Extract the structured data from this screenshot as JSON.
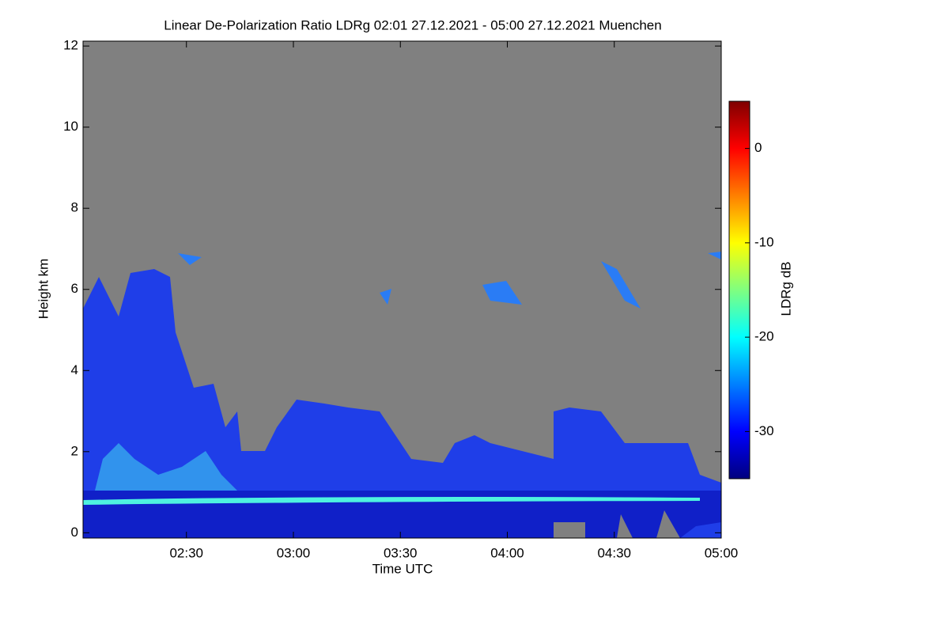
{
  "chart_data": {
    "type": "heatmap",
    "title": "Linear De-Polarization Ratio LDRg   02:01 27.12.2021 - 05:00 27.12.2021 Muenchen",
    "xlabel": "Time UTC",
    "ylabel": "Height km",
    "xlim": [
      "02:01",
      "05:00"
    ],
    "xticks": [
      "02:30",
      "03:00",
      "03:30",
      "04:00",
      "04:30",
      "05:00"
    ],
    "ylim": [
      -0.13,
      12.12
    ],
    "yticks": [
      0,
      2,
      4,
      6,
      8,
      10,
      12
    ],
    "background": "#808080",
    "colorbar": {
      "label": "LDRg dB",
      "lim": [
        -35,
        5
      ],
      "ticks": [
        0,
        -10,
        -20,
        -30
      ],
      "colormap": "jet"
    }
  }
}
